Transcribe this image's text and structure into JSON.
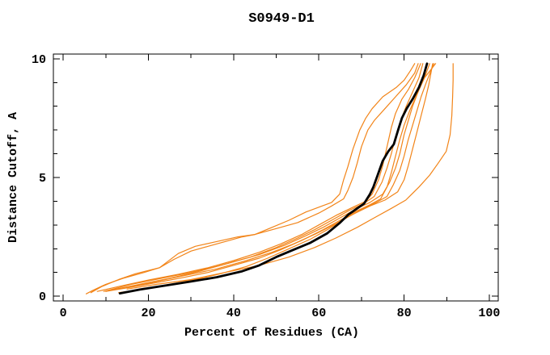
{
  "page": {
    "background_color": "#FFFFFF"
  },
  "colors": {
    "orange_series": "#F28418",
    "black_series": "#000000",
    "axis": "#000000",
    "text": "#000000"
  },
  "chart_data": {
    "type": "line",
    "title": "S0949-D1",
    "xlabel": "Percent of Residues (CA)",
    "ylabel": "Distance Cutoff, A",
    "xlim": [
      -2.3,
      102.1
    ],
    "ylim": [
      -0.2,
      10.2
    ],
    "x_major_ticks": [
      0,
      20,
      40,
      60,
      80,
      100
    ],
    "x_minor_ticks": [
      10,
      30,
      50,
      70,
      90
    ],
    "y_major_ticks": [
      0,
      5,
      10
    ],
    "y_minor_ticks": [
      1,
      2,
      3,
      4,
      6,
      7,
      8,
      9
    ],
    "grid": false,
    "legend_position": "none",
    "frame": "closed-box-with-mirrored-ticks",
    "series": [
      {
        "name": "orange-1",
        "color": "#F28418",
        "width": 1.2,
        "points": [
          [
            5.4,
            0.1
          ],
          [
            7,
            0.25
          ],
          [
            10,
            0.5
          ],
          [
            14,
            0.75
          ],
          [
            19,
            1.0
          ],
          [
            22.6,
            1.2
          ],
          [
            26,
            1.55
          ],
          [
            30,
            1.9
          ],
          [
            34,
            2.1
          ],
          [
            38,
            2.3
          ],
          [
            42,
            2.5
          ],
          [
            45,
            2.6
          ],
          [
            49,
            2.9
          ],
          [
            53,
            3.2
          ],
          [
            57,
            3.55
          ],
          [
            60,
            3.75
          ],
          [
            63,
            3.95
          ],
          [
            64.9,
            4.3
          ],
          [
            65.8,
            4.9
          ],
          [
            66.8,
            5.45
          ],
          [
            68,
            6.2
          ],
          [
            69.6,
            7.0
          ],
          [
            71,
            7.5
          ],
          [
            72.5,
            7.9
          ],
          [
            75,
            8.4
          ],
          [
            78.2,
            8.8
          ],
          [
            80,
            9.1
          ],
          [
            81.5,
            9.5
          ],
          [
            82.5,
            9.8
          ]
        ]
      },
      {
        "name": "orange-2",
        "color": "#F28418",
        "width": 1.2,
        "points": [
          [
            6.5,
            0.15
          ],
          [
            9,
            0.4
          ],
          [
            13,
            0.7
          ],
          [
            17,
            0.95
          ],
          [
            22.6,
            1.2
          ],
          [
            27,
            1.8
          ],
          [
            31,
            2.1
          ],
          [
            36,
            2.3
          ],
          [
            41,
            2.5
          ],
          [
            45,
            2.6
          ],
          [
            50,
            2.85
          ],
          [
            55,
            3.1
          ],
          [
            60,
            3.5
          ],
          [
            63,
            3.8
          ],
          [
            65.8,
            4.1
          ],
          [
            66.8,
            4.45
          ],
          [
            68,
            5.0
          ],
          [
            69,
            5.6
          ],
          [
            70,
            6.3
          ],
          [
            71.5,
            7.0
          ],
          [
            73,
            7.4
          ],
          [
            75.5,
            7.9
          ],
          [
            78,
            8.4
          ],
          [
            80.5,
            8.9
          ],
          [
            82.5,
            9.4
          ],
          [
            83.3,
            9.8
          ]
        ]
      },
      {
        "name": "orange-3",
        "color": "#F28418",
        "width": 1.2,
        "points": [
          [
            8,
            0.2
          ],
          [
            14,
            0.45
          ],
          [
            20,
            0.68
          ],
          [
            27,
            0.92
          ],
          [
            34,
            1.2
          ],
          [
            40,
            1.5
          ],
          [
            46,
            1.85
          ],
          [
            51,
            2.2
          ],
          [
            56,
            2.6
          ],
          [
            60,
            3.0
          ],
          [
            64,
            3.4
          ],
          [
            68,
            3.75
          ],
          [
            71,
            4.0
          ],
          [
            72.5,
            4.3
          ],
          [
            74,
            4.9
          ],
          [
            75,
            5.5
          ],
          [
            76,
            6.3
          ],
          [
            77,
            7.1
          ],
          [
            78,
            7.7
          ],
          [
            79.5,
            8.3
          ],
          [
            81,
            8.7
          ],
          [
            82.5,
            9.2
          ],
          [
            83.9,
            9.8
          ]
        ]
      },
      {
        "name": "orange-4",
        "color": "#F28418",
        "width": 1.2,
        "points": [
          [
            9.5,
            0.2
          ],
          [
            16,
            0.5
          ],
          [
            23,
            0.75
          ],
          [
            30,
            1.0
          ],
          [
            37,
            1.3
          ],
          [
            44,
            1.65
          ],
          [
            50,
            2.05
          ],
          [
            55,
            2.45
          ],
          [
            59,
            2.8
          ],
          [
            63,
            3.2
          ],
          [
            67,
            3.6
          ],
          [
            70.5,
            3.9
          ],
          [
            73,
            4.2
          ],
          [
            74.8,
            4.8
          ],
          [
            76,
            5.4
          ],
          [
            77,
            6.0
          ],
          [
            78,
            6.7
          ],
          [
            79,
            7.3
          ],
          [
            80.5,
            8.0
          ],
          [
            82,
            8.6
          ],
          [
            83.5,
            9.2
          ],
          [
            84.4,
            9.8
          ]
        ]
      },
      {
        "name": "orange-5",
        "color": "#F28418",
        "width": 1.2,
        "points": [
          [
            11,
            0.25
          ],
          [
            18,
            0.5
          ],
          [
            25,
            0.75
          ],
          [
            32,
            1.05
          ],
          [
            39,
            1.4
          ],
          [
            46,
            1.75
          ],
          [
            52,
            2.15
          ],
          [
            57,
            2.55
          ],
          [
            61,
            2.9
          ],
          [
            65,
            3.3
          ],
          [
            69,
            3.7
          ],
          [
            72,
            3.95
          ],
          [
            75,
            4.3
          ],
          [
            76.6,
            4.8
          ],
          [
            78,
            5.4
          ],
          [
            79,
            6.0
          ],
          [
            80,
            6.8
          ],
          [
            81,
            7.4
          ],
          [
            82,
            8.0
          ],
          [
            83.5,
            8.7
          ],
          [
            85,
            9.3
          ],
          [
            86,
            9.8
          ]
        ]
      },
      {
        "name": "orange-6",
        "color": "#F28418",
        "width": 1.2,
        "points": [
          [
            12.5,
            0.3
          ],
          [
            20,
            0.55
          ],
          [
            28,
            0.85
          ],
          [
            36,
            1.15
          ],
          [
            43,
            1.5
          ],
          [
            49,
            1.85
          ],
          [
            54,
            2.2
          ],
          [
            59,
            2.6
          ],
          [
            64,
            3.05
          ],
          [
            68,
            3.45
          ],
          [
            72,
            3.8
          ],
          [
            75.5,
            4.05
          ],
          [
            78.5,
            4.4
          ],
          [
            80,
            4.9
          ],
          [
            81,
            5.5
          ],
          [
            82,
            6.2
          ],
          [
            83,
            6.9
          ],
          [
            84,
            7.6
          ],
          [
            85,
            8.3
          ],
          [
            85.8,
            8.9
          ],
          [
            86.3,
            9.4
          ],
          [
            86.7,
            9.8
          ]
        ]
      },
      {
        "name": "orange-7",
        "color": "#F28418",
        "width": 1.2,
        "points": [
          [
            15,
            0.3
          ],
          [
            22,
            0.5
          ],
          [
            30,
            0.7
          ],
          [
            38,
            1.0
          ],
          [
            46,
            1.3
          ],
          [
            53,
            1.65
          ],
          [
            59,
            2.05
          ],
          [
            64,
            2.45
          ],
          [
            69,
            2.9
          ],
          [
            73,
            3.3
          ],
          [
            77,
            3.7
          ],
          [
            80.4,
            4.05
          ],
          [
            83.5,
            4.6
          ],
          [
            86,
            5.1
          ],
          [
            88,
            5.6
          ],
          [
            89.9,
            6.1
          ],
          [
            90.8,
            6.8
          ],
          [
            91.2,
            7.6
          ],
          [
            91.4,
            8.4
          ],
          [
            91.5,
            9.1
          ],
          [
            91.5,
            9.8
          ]
        ]
      },
      {
        "name": "orange-8",
        "color": "#F28418",
        "width": 1.2,
        "points": [
          [
            10,
            0.2
          ],
          [
            16,
            0.38
          ],
          [
            22,
            0.58
          ],
          [
            28,
            0.78
          ],
          [
            34,
            1.0
          ],
          [
            40,
            1.3
          ],
          [
            46,
            1.6
          ],
          [
            51,
            1.95
          ],
          [
            56,
            2.35
          ],
          [
            61,
            2.8
          ],
          [
            65,
            3.2
          ],
          [
            69,
            3.6
          ],
          [
            72,
            3.85
          ],
          [
            74.5,
            4.1
          ],
          [
            76,
            4.6
          ],
          [
            77,
            5.2
          ],
          [
            78,
            5.9
          ],
          [
            79,
            6.6
          ],
          [
            80,
            7.2
          ],
          [
            81.5,
            7.9
          ],
          [
            83,
            8.5
          ],
          [
            84.8,
            9.2
          ],
          [
            87.4,
            9.8
          ]
        ]
      },
      {
        "name": "orange-9",
        "color": "#F28418",
        "width": 1.2,
        "points": [
          [
            13,
            0.15
          ],
          [
            19,
            0.3
          ],
          [
            25,
            0.5
          ],
          [
            31,
            0.7
          ],
          [
            37,
            0.95
          ],
          [
            43,
            1.25
          ],
          [
            48,
            1.6
          ],
          [
            53,
            2.0
          ],
          [
            58,
            2.4
          ],
          [
            62,
            2.8
          ],
          [
            66,
            3.25
          ],
          [
            70,
            3.65
          ],
          [
            73.5,
            3.95
          ],
          [
            76,
            4.2
          ],
          [
            77.5,
            4.7
          ],
          [
            79,
            5.3
          ],
          [
            80,
            5.9
          ],
          [
            81,
            6.6
          ],
          [
            82,
            7.2
          ],
          [
            83,
            7.8
          ],
          [
            84,
            8.4
          ],
          [
            85.2,
            9.0
          ],
          [
            86.3,
            9.5
          ],
          [
            87,
            9.8
          ]
        ]
      },
      {
        "name": "black",
        "color": "#000000",
        "width": 2.8,
        "points": [
          [
            13.3,
            0.12
          ],
          [
            18,
            0.28
          ],
          [
            24,
            0.45
          ],
          [
            30,
            0.62
          ],
          [
            36,
            0.8
          ],
          [
            42,
            1.05
          ],
          [
            46,
            1.3
          ],
          [
            50,
            1.65
          ],
          [
            54,
            1.95
          ],
          [
            58,
            2.25
          ],
          [
            62,
            2.65
          ],
          [
            65,
            3.1
          ],
          [
            67,
            3.45
          ],
          [
            69,
            3.7
          ],
          [
            70.6,
            3.9
          ],
          [
            72,
            4.3
          ],
          [
            72.8,
            4.6
          ],
          [
            73.8,
            5.1
          ],
          [
            75,
            5.7
          ],
          [
            76.3,
            6.1
          ],
          [
            77.6,
            6.4
          ],
          [
            78.6,
            7.0
          ],
          [
            79.5,
            7.5
          ],
          [
            80.6,
            7.9
          ],
          [
            82,
            8.3
          ],
          [
            83.5,
            8.8
          ],
          [
            84.6,
            9.3
          ],
          [
            85.4,
            9.8
          ]
        ]
      }
    ]
  }
}
